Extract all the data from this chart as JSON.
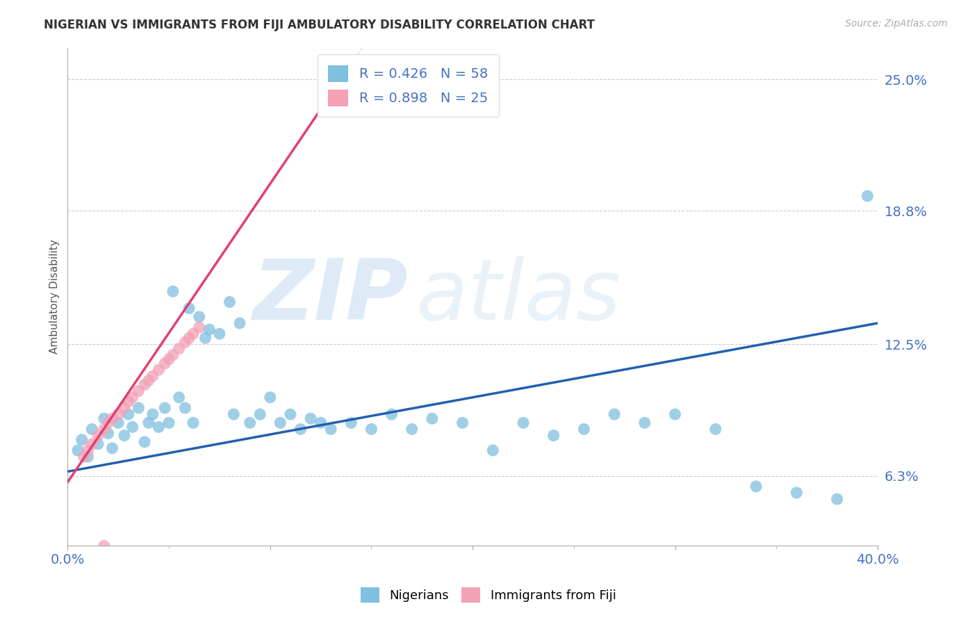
{
  "title": "NIGERIAN VS IMMIGRANTS FROM FIJI AMBULATORY DISABILITY CORRELATION CHART",
  "source": "Source: ZipAtlas.com",
  "ylabel": "Ambulatory Disability",
  "x_min": 0.0,
  "x_max": 0.4,
  "y_min": 0.03,
  "y_max": 0.265,
  "y_ticks": [
    0.063,
    0.125,
    0.188,
    0.25
  ],
  "y_tick_labels": [
    "6.3%",
    "12.5%",
    "18.8%",
    "25.0%"
  ],
  "legend_blue_label": "R = 0.426   N = 58",
  "legend_pink_label": "R = 0.898   N = 25",
  "blue_color": "#7fbfdf",
  "pink_color": "#f4a0b5",
  "blue_line_color": "#2060b0",
  "pink_line_color": "#e04070",
  "watermark_zip": "ZIP",
  "watermark_atlas": "atlas",
  "nigerian_x": [
    0.005,
    0.007,
    0.01,
    0.012,
    0.015,
    0.018,
    0.02,
    0.022,
    0.025,
    0.028,
    0.03,
    0.032,
    0.035,
    0.038,
    0.04,
    0.042,
    0.045,
    0.048,
    0.05,
    0.052,
    0.055,
    0.058,
    0.06,
    0.062,
    0.065,
    0.068,
    0.07,
    0.075,
    0.08,
    0.082,
    0.085,
    0.09,
    0.095,
    0.1,
    0.105,
    0.11,
    0.115,
    0.12,
    0.125,
    0.13,
    0.14,
    0.15,
    0.16,
    0.17,
    0.18,
    0.195,
    0.21,
    0.225,
    0.24,
    0.255,
    0.27,
    0.285,
    0.3,
    0.32,
    0.34,
    0.36,
    0.38,
    0.395
  ],
  "nigerian_y": [
    0.075,
    0.08,
    0.072,
    0.085,
    0.078,
    0.09,
    0.083,
    0.076,
    0.088,
    0.082,
    0.092,
    0.086,
    0.095,
    0.079,
    0.088,
    0.092,
    0.086,
    0.095,
    0.088,
    0.15,
    0.1,
    0.095,
    0.142,
    0.088,
    0.138,
    0.128,
    0.132,
    0.13,
    0.145,
    0.092,
    0.135,
    0.088,
    0.092,
    0.1,
    0.088,
    0.092,
    0.085,
    0.09,
    0.088,
    0.085,
    0.088,
    0.085,
    0.092,
    0.085,
    0.09,
    0.088,
    0.075,
    0.088,
    0.082,
    0.085,
    0.092,
    0.088,
    0.092,
    0.085,
    0.058,
    0.055,
    0.052,
    0.195
  ],
  "fiji_x": [
    0.008,
    0.01,
    0.012,
    0.015,
    0.018,
    0.02,
    0.022,
    0.025,
    0.028,
    0.03,
    0.032,
    0.035,
    0.038,
    0.04,
    0.042,
    0.045,
    0.048,
    0.05,
    0.052,
    0.055,
    0.058,
    0.06,
    0.062,
    0.065,
    0.018
  ],
  "fiji_y": [
    0.072,
    0.075,
    0.078,
    0.082,
    0.085,
    0.088,
    0.09,
    0.092,
    0.095,
    0.098,
    0.1,
    0.103,
    0.106,
    0.108,
    0.11,
    0.113,
    0.116,
    0.118,
    0.12,
    0.123,
    0.126,
    0.128,
    0.13,
    0.133,
    0.03
  ],
  "blue_trend": [
    0.0,
    0.4,
    0.065,
    0.135
  ],
  "pink_trend": [
    0.0,
    0.135,
    0.06,
    0.25
  ]
}
